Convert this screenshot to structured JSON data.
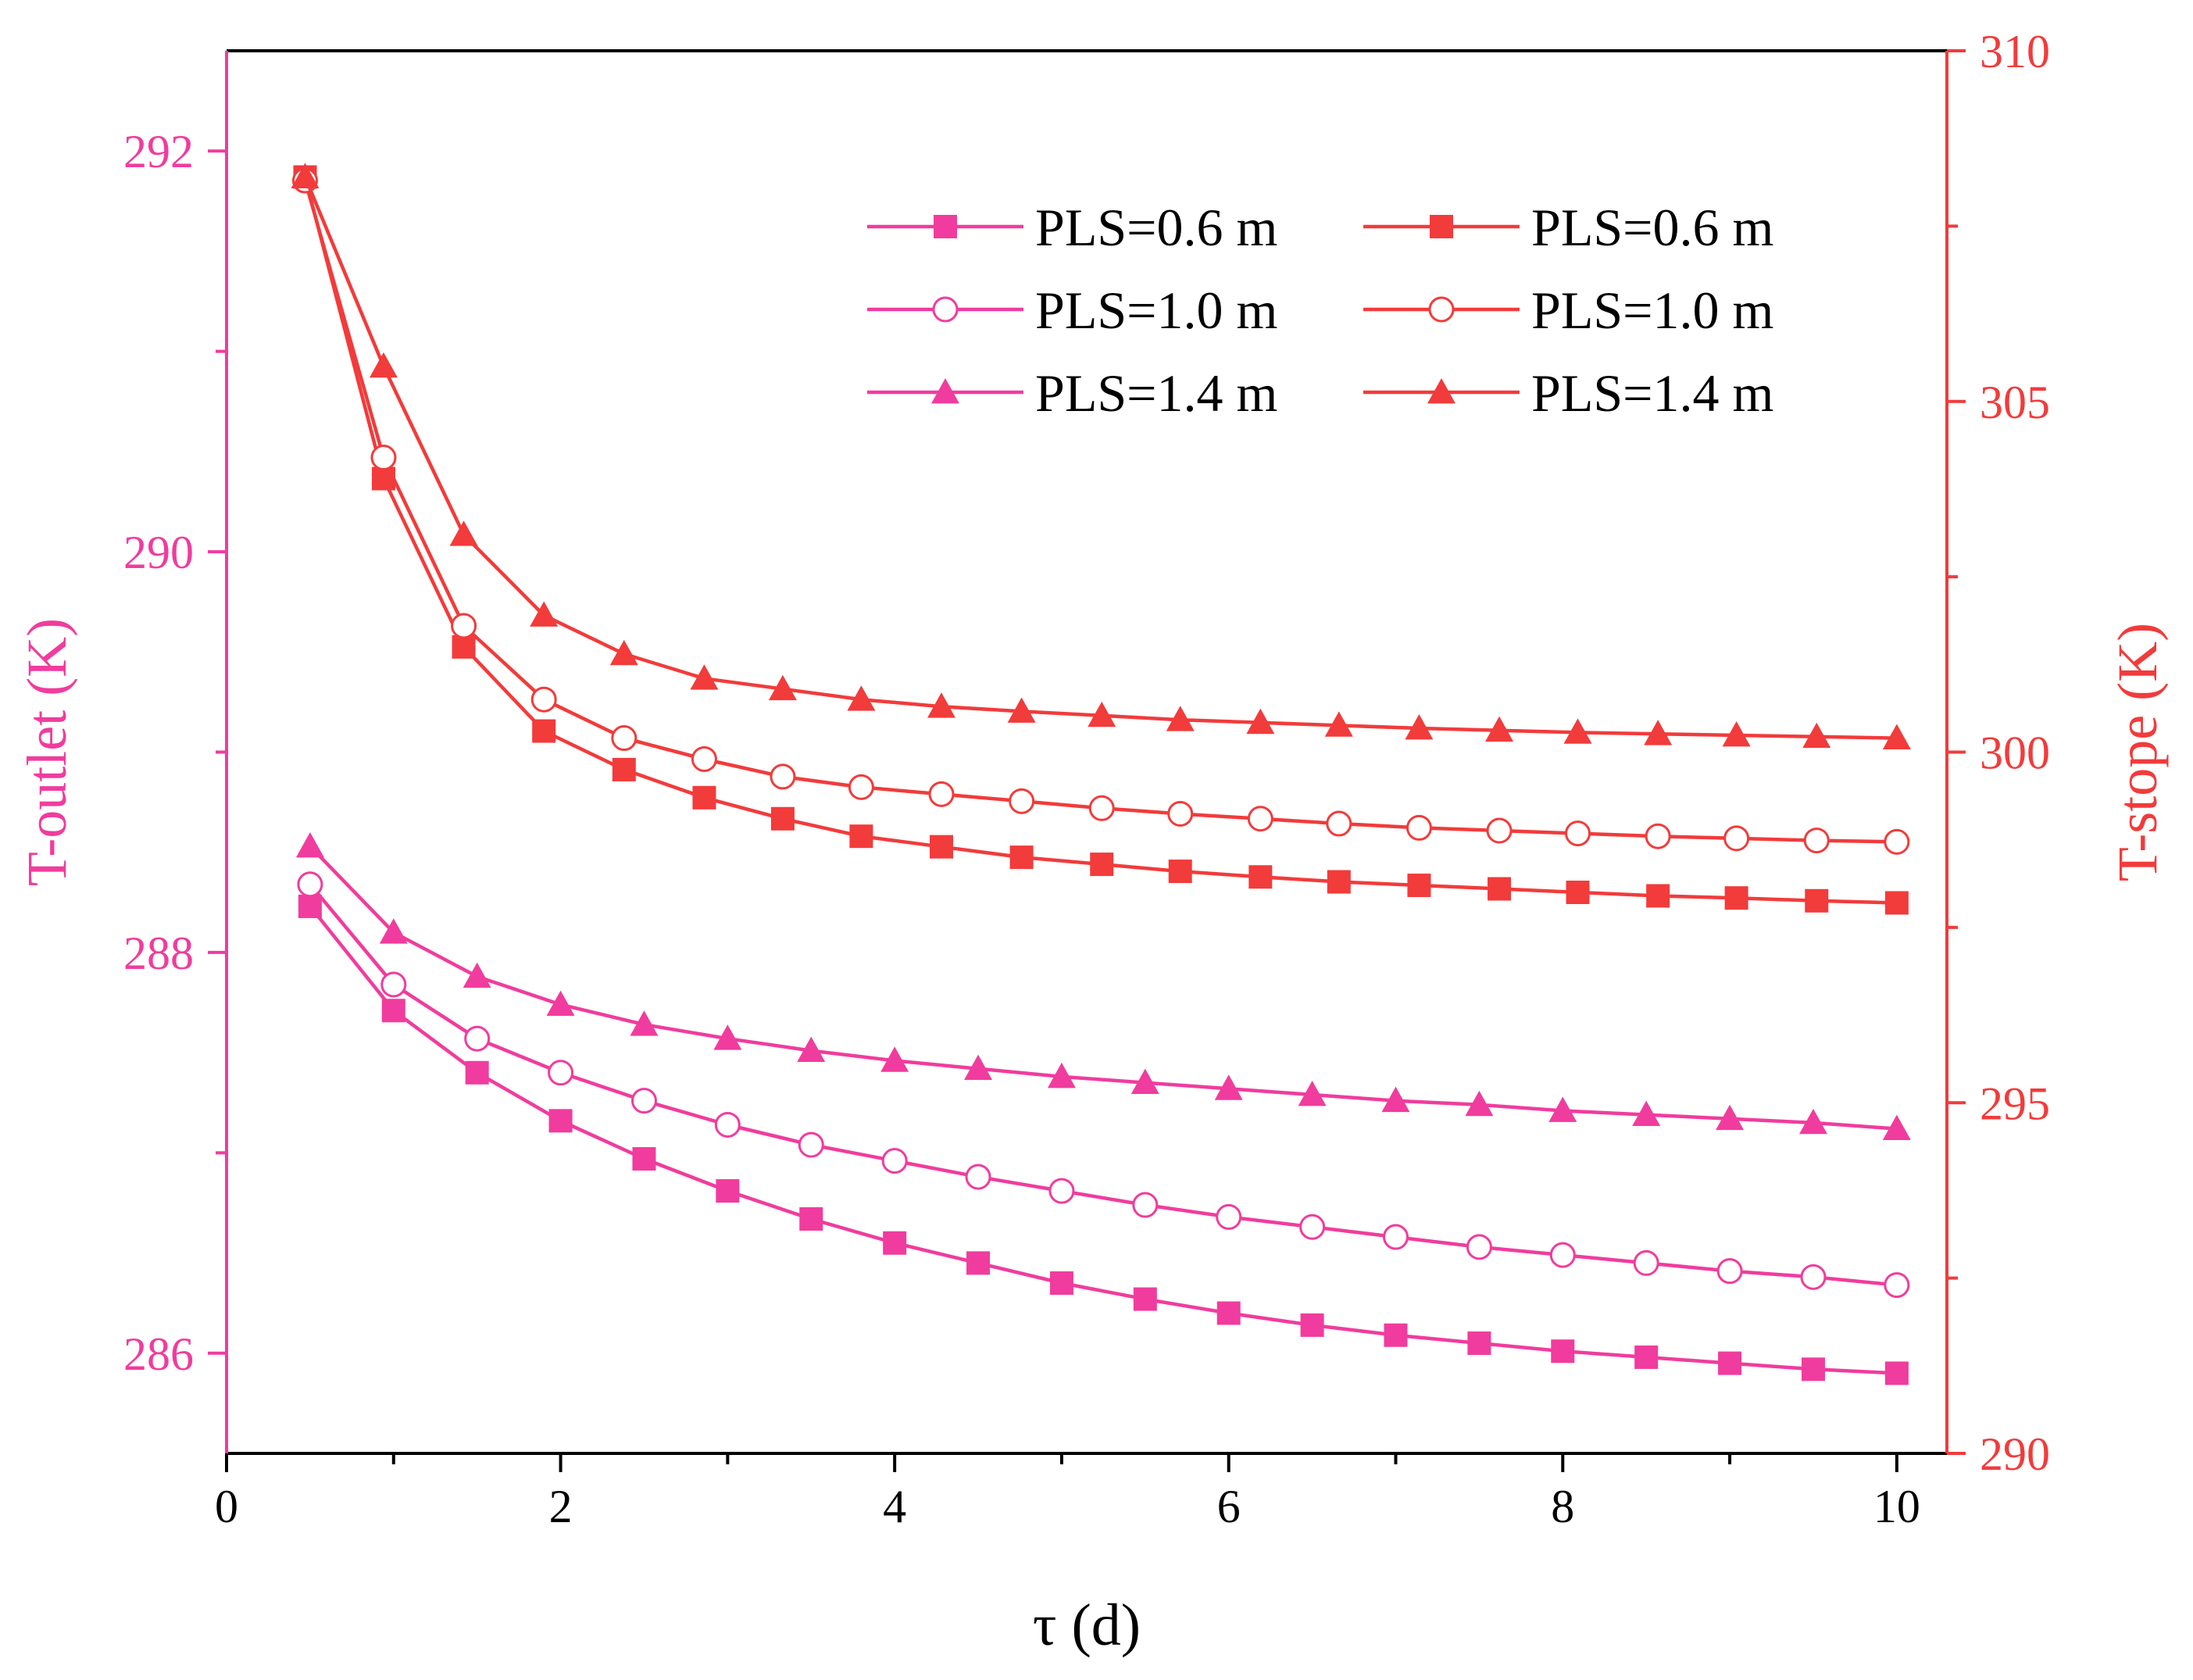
{
  "chart_data": {
    "type": "line",
    "title": "",
    "xlabel": "τ (d)",
    "ylabel_left": "T-outlet (K)",
    "ylabel_right": "T-stope (K)",
    "xlim": [
      0,
      10.3
    ],
    "ylim_left": [
      285.5,
      292.5
    ],
    "ylim_right": [
      290,
      310
    ],
    "x_ticks": [
      "0",
      "2",
      "4",
      "6",
      "8",
      "10"
    ],
    "y_left_ticks": [
      "286",
      "288",
      "290",
      "292"
    ],
    "y_right_ticks": [
      "290",
      "295",
      "300",
      "305",
      "310"
    ],
    "grid": false,
    "legend_position": "top-right",
    "colors": {
      "outlet": "#F03C9E",
      "stope": "#F23B3B",
      "axis": "#000000"
    },
    "series": [
      {
        "name": "PLS=0.6 m",
        "axis": "left",
        "marker": "filled-square",
        "x": [
          0.5,
          1.0,
          1.5,
          2.0,
          2.5,
          3.0,
          3.5,
          4.0,
          4.5,
          5.0,
          5.5,
          6.0,
          6.5,
          7.0,
          7.5,
          8.0,
          8.5,
          9.0,
          9.5,
          10.0
        ],
        "y": [
          288.23,
          287.71,
          287.4,
          287.16,
          286.97,
          286.81,
          286.67,
          286.55,
          286.45,
          286.35,
          286.27,
          286.2,
          286.14,
          286.09,
          286.05,
          286.01,
          285.98,
          285.95,
          285.92,
          285.9
        ]
      },
      {
        "name": "PLS=1.0 m",
        "axis": "left",
        "marker": "open-circle",
        "x": [
          0.5,
          1.0,
          1.5,
          2.0,
          2.5,
          3.0,
          3.5,
          4.0,
          4.5,
          5.0,
          5.5,
          6.0,
          6.5,
          7.0,
          7.5,
          8.0,
          8.5,
          9.0,
          9.5,
          10.0
        ],
        "y": [
          288.34,
          287.84,
          287.57,
          287.4,
          287.26,
          287.14,
          287.04,
          286.96,
          286.88,
          286.81,
          286.74,
          286.68,
          286.63,
          286.58,
          286.53,
          286.49,
          286.45,
          286.41,
          286.38,
          286.34
        ]
      },
      {
        "name": "PLS=1.4 m",
        "axis": "left",
        "marker": "filled-triangle",
        "x": [
          0.5,
          1.0,
          1.5,
          2.0,
          2.5,
          3.0,
          3.5,
          4.0,
          4.5,
          5.0,
          5.5,
          6.0,
          6.5,
          7.0,
          7.5,
          8.0,
          8.5,
          9.0,
          9.5,
          10.0
        ],
        "y": [
          288.53,
          288.1,
          287.88,
          287.74,
          287.64,
          287.57,
          287.51,
          287.46,
          287.42,
          287.38,
          287.35,
          287.32,
          287.29,
          287.26,
          287.24,
          287.21,
          287.19,
          287.17,
          287.15,
          287.12
        ]
      },
      {
        "name": "PLS=0.6 m",
        "axis": "right",
        "marker": "filled-square",
        "x": [
          0.47,
          0.94,
          1.42,
          1.9,
          2.38,
          2.86,
          3.33,
          3.8,
          4.28,
          4.76,
          5.24,
          5.71,
          6.19,
          6.66,
          7.14,
          7.62,
          8.09,
          8.57,
          9.04,
          9.52,
          10.0
        ],
        "y": [
          308.2,
          303.9,
          301.5,
          300.3,
          299.75,
          299.35,
          299.05,
          298.8,
          298.65,
          298.5,
          298.4,
          298.3,
          298.22,
          298.15,
          298.1,
          298.05,
          298.0,
          297.95,
          297.92,
          297.88,
          297.85
        ]
      },
      {
        "name": "PLS=1.0 m",
        "axis": "right",
        "marker": "open-circle",
        "x": [
          0.47,
          0.94,
          1.42,
          1.9,
          2.38,
          2.86,
          3.33,
          3.8,
          4.28,
          4.76,
          5.24,
          5.71,
          6.19,
          6.66,
          7.14,
          7.62,
          8.09,
          8.57,
          9.04,
          9.52,
          10.0
        ],
        "y": [
          308.15,
          304.2,
          301.8,
          300.75,
          300.2,
          299.9,
          299.65,
          299.5,
          299.4,
          299.3,
          299.2,
          299.12,
          299.05,
          298.98,
          298.92,
          298.88,
          298.84,
          298.8,
          298.77,
          298.74,
          298.72
        ]
      },
      {
        "name": "PLS=1.4 m",
        "axis": "right",
        "marker": "filled-triangle",
        "x": [
          0.47,
          0.94,
          1.42,
          1.9,
          2.38,
          2.86,
          3.33,
          3.8,
          4.28,
          4.76,
          5.24,
          5.71,
          6.19,
          6.66,
          7.14,
          7.62,
          8.09,
          8.57,
          9.04,
          9.52,
          10.0
        ],
        "y": [
          308.2,
          305.5,
          303.1,
          301.95,
          301.4,
          301.05,
          300.9,
          300.75,
          300.65,
          300.58,
          300.52,
          300.46,
          300.42,
          300.38,
          300.34,
          300.31,
          300.28,
          300.26,
          300.24,
          300.22,
          300.2
        ]
      }
    ]
  }
}
